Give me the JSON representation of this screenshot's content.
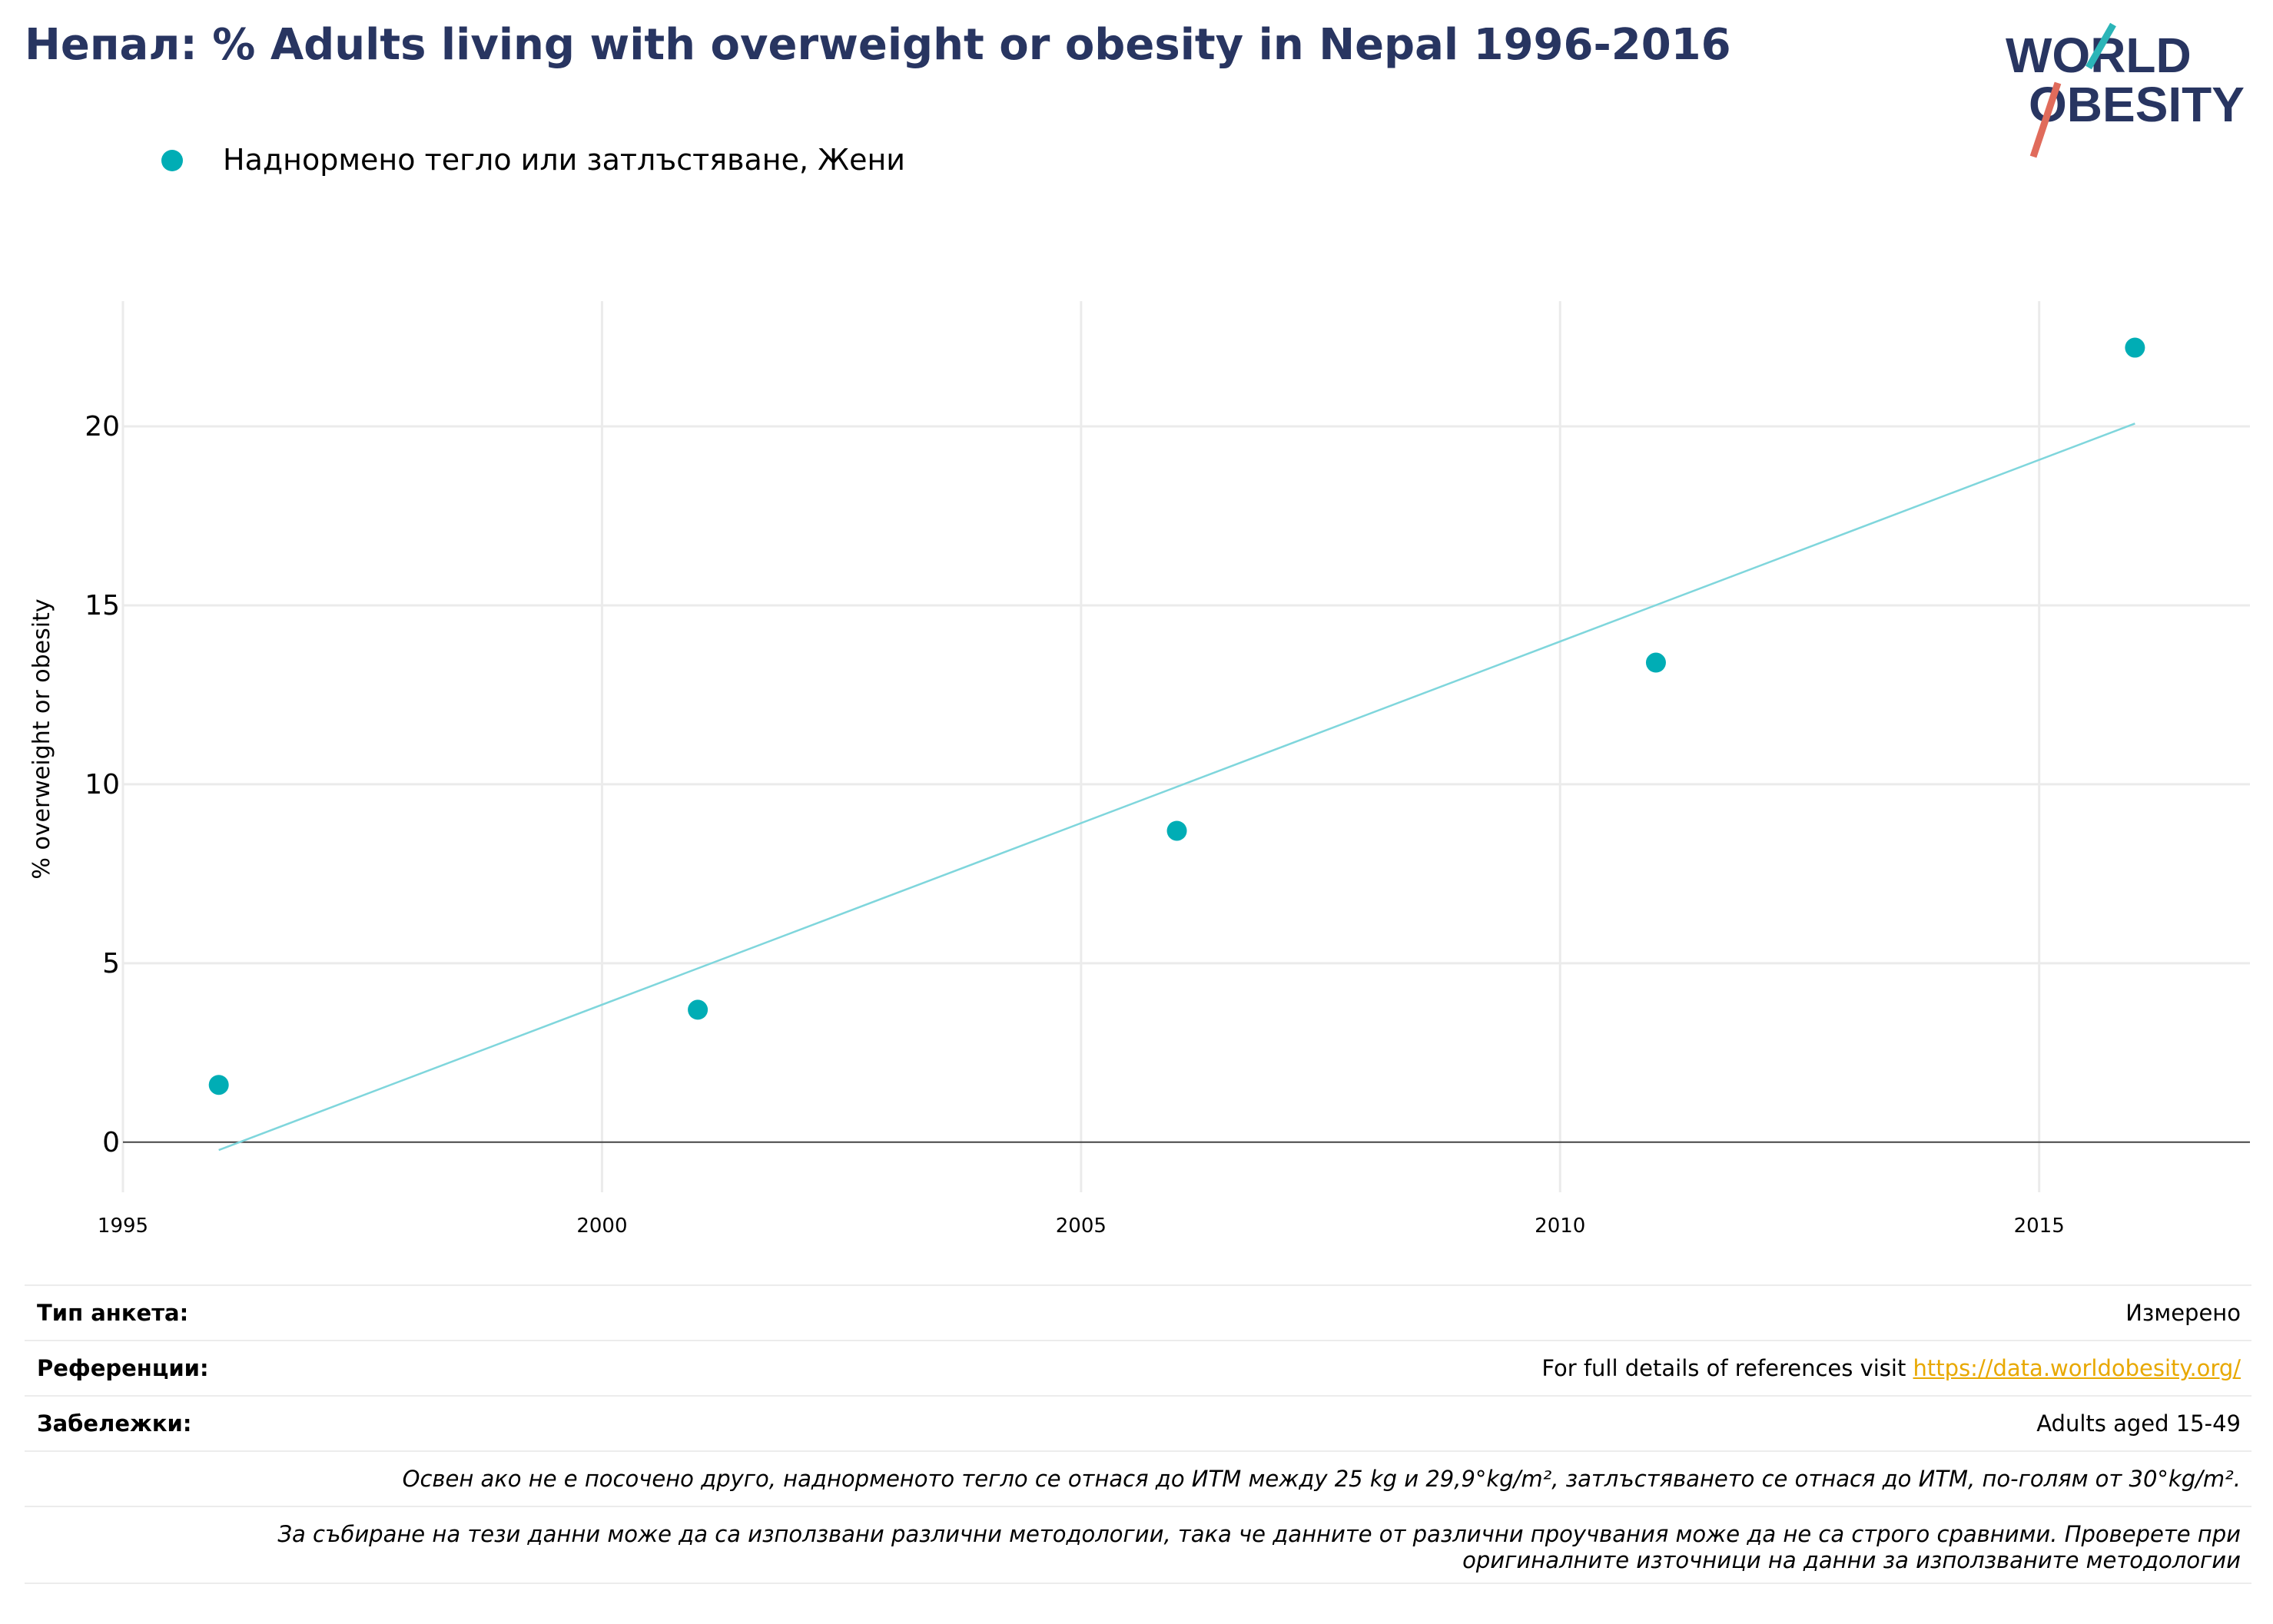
{
  "title": "Непал: % Adults living with overweight or obesity in Nepal 1996-2016",
  "logo": {
    "line1": "WORLD",
    "line2": "OBESITY",
    "slash_top_color": "#2bb5b8",
    "slash_bottom_color": "#e06b5b",
    "text_color": "#283561"
  },
  "legend": {
    "label": "Наднормено тегло или затлъстяване, Жени",
    "color": "#00adb5"
  },
  "chart_data": {
    "type": "scatter",
    "title": "",
    "xlabel": "",
    "ylabel": "% overweight or obesity",
    "xlim": [
      1995,
      2017.2
    ],
    "ylim": [
      -1.4,
      23.5
    ],
    "xticks": [
      1995,
      2000,
      2005,
      2010,
      2015
    ],
    "yticks": [
      0,
      5,
      10,
      15,
      20
    ],
    "grid": true,
    "legend_position": "top-left",
    "series": [
      {
        "name": "Наднормено тегло или затлъстяване, Жени",
        "color": "#00adb5",
        "x": [
          1996,
          2001,
          2006,
          2011,
          2016
        ],
        "y": [
          1.6,
          3.7,
          8.7,
          13.4,
          22.2
        ]
      }
    ],
    "trendline": {
      "color": "#7fd6dc",
      "x": [
        1996,
        2016
      ],
      "y": [
        -0.22,
        20.08
      ]
    }
  },
  "info": {
    "survey_type_label": "Тип анкета:",
    "survey_type_value": "Измерено",
    "references_label": "Референции:",
    "references_text": "For full details of references visit ",
    "references_link": "https://data.worldobesity.org/",
    "notes_label": "Забележки:",
    "notes_value": "Adults aged 15-49",
    "definition_note": "Освен ако не е посочено друго, наднорменото тегло се отнася до ИТМ между 25 kg и 29,9°kg/m², затлъстяването се отнася до ИТМ, по-голям от 30°kg/m².",
    "methodology_note_line1": "За събиране на тези данни може да са използвани различни методологии, така че данните от различни проучвания може да не са строго сравними. Проверете при",
    "methodology_note_line2": "оригиналните източници на данни за използваните методологии"
  }
}
